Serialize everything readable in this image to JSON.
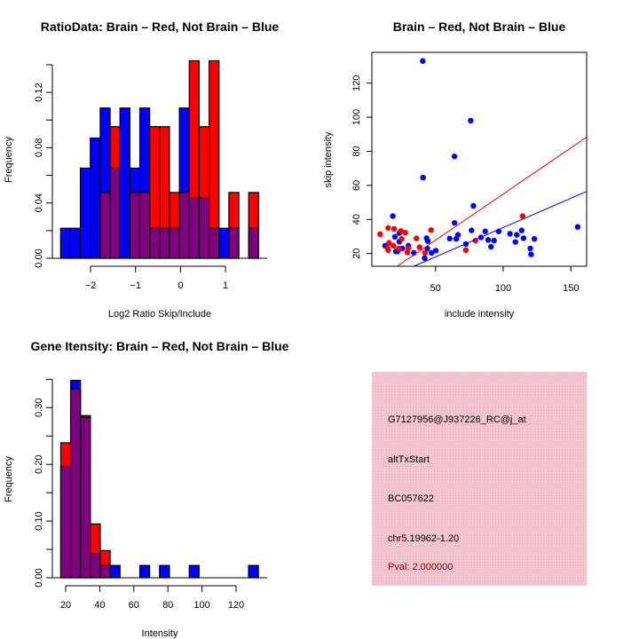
{
  "colors": {
    "red": "#ff0000",
    "blue": "#0000ff",
    "purple": "#800080",
    "panel": "#f3c6cf",
    "pval": "#8b0000"
  },
  "chart_data": [
    {
      "type": "bar",
      "title": "RatioData: Brain – Red, Not Brain – Blue",
      "xlabel": "Log2 Ratio Skip/Include",
      "ylabel": "Frequency",
      "bin_start": -2.665,
      "bin_width": 0.22,
      "xticks": [
        -2,
        -1,
        0,
        1
      ],
      "xtick_labels": [
        "−2",
        "−1",
        "0",
        "1"
      ],
      "yticks": [
        0,
        0.02,
        0.04,
        0.06,
        0.08,
        0.1,
        0.12,
        0.14
      ],
      "ytick_labels": [
        "0.00",
        "0.04",
        "0.08",
        "0.12"
      ],
      "ytick_label_values": [
        0,
        0.04,
        0.08,
        0.12
      ],
      "ylim": [
        0,
        0.14
      ],
      "series": [
        {
          "name": "Not Brain",
          "color": "blue",
          "values": [
            0.0217,
            0.0217,
            0.0652,
            0.087,
            0.1087,
            0.0652,
            0.1087,
            0.0652,
            0.1087,
            0.0217,
            0.0217,
            0.0217,
            0.1087,
            0.0435,
            0.0435,
            0.0217,
            0.0217,
            0.0217,
            0,
            0.0217
          ]
        },
        {
          "name": "Brain",
          "color": "red",
          "values": [
            0,
            0,
            0,
            0,
            0.0476,
            0.0952,
            0,
            0.0476,
            0.0476,
            0.0952,
            0.0952,
            0.0476,
            0.0476,
            0.1429,
            0.0952,
            0.1429,
            0,
            0.0476,
            0,
            0.0476
          ]
        }
      ]
    },
    {
      "type": "scatter",
      "title": "Brain – Red, Not Brain – Blue",
      "xlabel": "include intensity",
      "ylabel": "skip intensity",
      "xticks": [
        50,
        100,
        150
      ],
      "yticks": [
        20,
        40,
        60,
        80,
        100,
        120
      ],
      "series": [
        {
          "name": "Not Brain",
          "color": "blue",
          "fit": {
            "slope": 0.344,
            "intercept": 0.85
          },
          "points": [
            [
              40.6,
              133
            ],
            [
              76,
              98
            ],
            [
              64,
              77
            ],
            [
              40.8,
              64.6
            ],
            [
              78,
              48
            ],
            [
              18.5,
              42
            ],
            [
              64,
              38
            ],
            [
              23.3,
              32
            ],
            [
              20,
              29.8
            ],
            [
              12.8,
              24.6
            ],
            [
              23.3,
              27
            ],
            [
              25.5,
              23
            ],
            [
              20.7,
              21.3
            ],
            [
              22,
              21.3
            ],
            [
              30,
              24.6
            ],
            [
              34,
              20.4
            ],
            [
              42,
              17.3
            ],
            [
              43.4,
              29
            ],
            [
              44.3,
              27.3
            ],
            [
              44,
              23
            ],
            [
              47,
              20.4
            ],
            [
              50.2,
              21.7
            ],
            [
              60.5,
              28.8
            ],
            [
              65.3,
              28.6
            ],
            [
              66.6,
              31
            ],
            [
              72.4,
              25.6
            ],
            [
              76.6,
              33.6
            ],
            [
              83.6,
              29.5
            ],
            [
              86.7,
              33
            ],
            [
              88.9,
              28
            ],
            [
              91,
              24
            ],
            [
              93.2,
              27.6
            ],
            [
              96.7,
              33
            ],
            [
              105,
              31.6
            ],
            [
              109,
              26.8
            ],
            [
              110,
              31
            ],
            [
              113.6,
              33.6
            ],
            [
              115,
              29
            ],
            [
              120,
              23
            ],
            [
              120.6,
              19.5
            ],
            [
              123,
              28.6
            ],
            [
              155,
              35.6
            ]
          ]
        },
        {
          "name": "Brain",
          "color": "red",
          "fit": {
            "slope": 0.542,
            "intercept": 0.75
          },
          "points": [
            [
              9.1,
              31.4
            ],
            [
              15,
              35
            ],
            [
              19.4,
              34.5
            ],
            [
              15.7,
              26.3
            ],
            [
              14.6,
              23.2
            ],
            [
              15,
              22
            ],
            [
              19,
              24.6
            ],
            [
              24.4,
              33.3
            ],
            [
              27.7,
              32.3
            ],
            [
              25,
              28.6
            ],
            [
              22.9,
              23
            ],
            [
              29.2,
              20.7
            ],
            [
              29.9,
              23.2
            ],
            [
              35.9,
              28.9
            ],
            [
              38.2,
              23.7
            ],
            [
              42.3,
              20.4
            ],
            [
              46.7,
              33.8
            ],
            [
              72.4,
              22
            ],
            [
              79.5,
              27.6
            ],
            [
              114.3,
              42
            ]
          ]
        }
      ]
    },
    {
      "type": "bar",
      "title": "Gene Itensity: Brain – Red, Not Brain – Blue",
      "xlabel": "Intensity",
      "ylabel": "Frequency",
      "bin_start": 17.1,
      "bin_width": 5.8,
      "xticks": [
        20,
        40,
        60,
        80,
        100,
        120
      ],
      "xtick_labels": [
        "20",
        "40",
        "60",
        "80",
        "100",
        "120"
      ],
      "yticks": [
        0,
        0.05,
        0.1,
        0.15,
        0.2,
        0.25,
        0.3,
        0.35
      ],
      "ytick_labels": [
        "0.00",
        "0.10",
        "0.20",
        "0.30"
      ],
      "ytick_label_values": [
        0,
        0.1,
        0.2,
        0.3
      ],
      "ylim": [
        0,
        0.35
      ],
      "series": [
        {
          "name": "Not Brain",
          "color": "blue",
          "values": [
            0.196,
            0.348,
            0.283,
            0.043,
            0.0217,
            0.0217,
            0,
            0,
            0.0217,
            0,
            0.0217,
            0,
            0,
            0.0217,
            0,
            0,
            0,
            0,
            0,
            0.0217
          ]
        },
        {
          "name": "Brain",
          "color": "red",
          "values": [
            0.238,
            0.333,
            0.286,
            0.095,
            0.048,
            0,
            0,
            0,
            0,
            0,
            0,
            0,
            0,
            0,
            0,
            0,
            0,
            0,
            0,
            0
          ]
        }
      ]
    }
  ],
  "info_panel": {
    "probe_id": "G7127956@J937226_RC@j_at",
    "event_type": "altTxStart",
    "accession": "BC057622",
    "location": "chr5.19962-1.20",
    "pval": "Pval: 2.000000"
  }
}
